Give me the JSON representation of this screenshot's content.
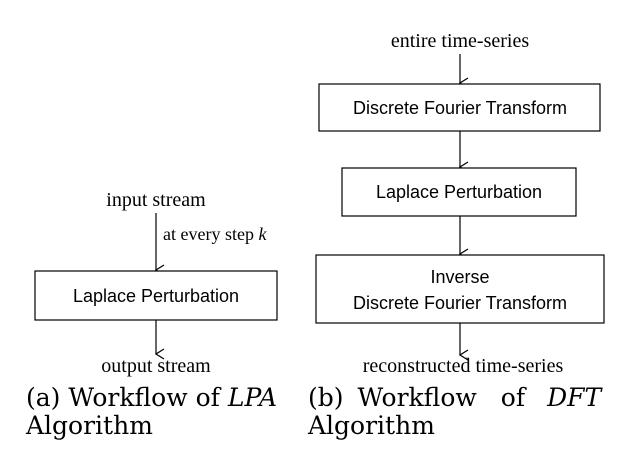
{
  "lpa": {
    "input_label": "input stream",
    "step_label_prefix": "at every step ",
    "step_label_var": "k",
    "box_label": "Laplace Perturbation",
    "output_label": "output stream",
    "caption": {
      "prefix": "(a) Workflow of",
      "name": "LPA",
      "suffix": "Algorithm"
    }
  },
  "dft": {
    "input_label": "entire time-series",
    "box1_label": "Discrete Fourier Transform",
    "box2_label": "Laplace Perturbation",
    "box3_line1": "Inverse",
    "box3_line2": "Discrete Fourier Transform",
    "output_label": "reconstructed time-series",
    "caption": {
      "prefix": "(b)",
      "word1": "Workflow",
      "word2": "of",
      "name": "DFT",
      "suffix": "Algorithm"
    }
  }
}
